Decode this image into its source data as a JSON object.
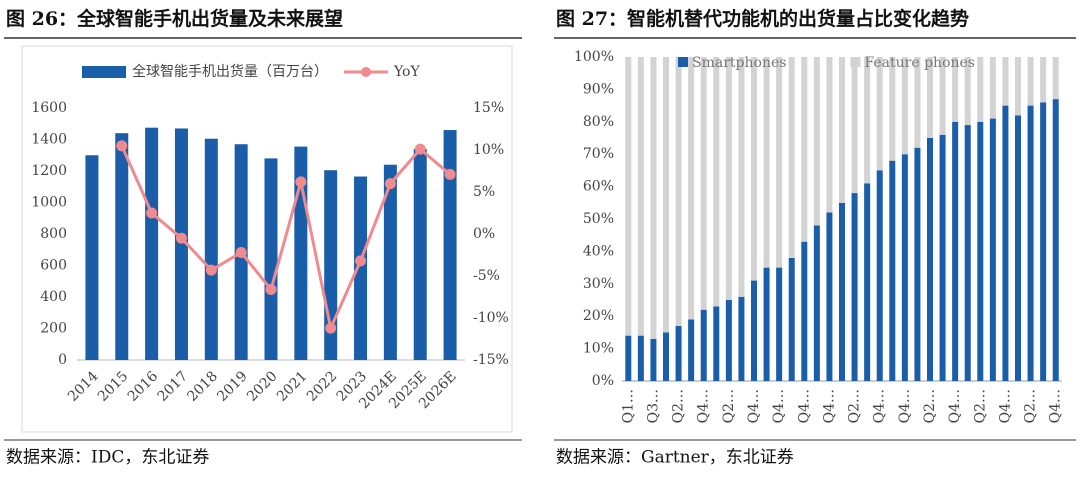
{
  "chart_data": [
    {
      "type": "combo",
      "title": "图 26：全球智能手机出货量及未来展望",
      "source": "数据来源：IDC，东北证券",
      "categories": [
        "2014",
        "2015",
        "2016",
        "2017",
        "2018",
        "2019",
        "2020",
        "2021",
        "2022",
        "2023",
        "2024E",
        "2025E",
        "2026E"
      ],
      "series": [
        {
          "name": "全球智能手机出货量（百万台）",
          "type": "bar",
          "color": "#1a5da8",
          "values": [
            1300,
            1440,
            1475,
            1470,
            1405,
            1370,
            1280,
            1355,
            1205,
            1165,
            1240,
            1340,
            1460
          ]
        },
        {
          "name": "YoY",
          "type": "line",
          "axis": "y2",
          "color": "#f08a8f",
          "values": [
            null,
            10.5,
            2.5,
            -0.5,
            -4.3,
            -2.2,
            -6.6,
            6.2,
            -11.2,
            -3.2,
            6.0,
            10.1,
            7.1
          ]
        }
      ],
      "ylim": [
        0,
        1600
      ],
      "yticks": [
        0,
        200,
        400,
        600,
        800,
        1000,
        1200,
        1400,
        1600
      ],
      "y2lim": [
        -15,
        15
      ],
      "y2ticks": [
        {
          "value": -15,
          "label": "-15%"
        },
        {
          "value": -10,
          "label": "-10%"
        },
        {
          "value": -5,
          "label": "-5%"
        },
        {
          "value": 0,
          "label": "0%"
        },
        {
          "value": 5,
          "label": "5%"
        },
        {
          "value": 10,
          "label": "10%"
        },
        {
          "value": 15,
          "label": "15%"
        }
      ]
    },
    {
      "type": "stacked_bar",
      "title": "图 27：智能机替代功能机的出货量占比变化趋势",
      "source": "数据来源：Gartner，东北证券",
      "categories": [
        "Q1…",
        null,
        "Q3…",
        null,
        "Q2…",
        null,
        "Q4…",
        null,
        "Q2…",
        null,
        "Q4…",
        null,
        "Q4…",
        null,
        "Q4…",
        null,
        "Q4…",
        null,
        "Q2…",
        null,
        "Q4…",
        null,
        "Q4…",
        null,
        "Q2…",
        null,
        "Q4…",
        null,
        "Q2…",
        null,
        "Q4…",
        null,
        "Q2…",
        null,
        "Q4…"
      ],
      "series": [
        {
          "name": "Smartphones",
          "color": "#1a5da8",
          "values": [
            14,
            14,
            13,
            15,
            17,
            19,
            22,
            23,
            25,
            26,
            31,
            35,
            35,
            38,
            43,
            48,
            52,
            55,
            58,
            61,
            65,
            68,
            70,
            72,
            75,
            76,
            80,
            79,
            80,
            81,
            85,
            82,
            85,
            86,
            87
          ]
        },
        {
          "name": "Feature phones",
          "color": "#d3d3d3",
          "values": [
            86,
            86,
            87,
            85,
            83,
            81,
            78,
            77,
            75,
            74,
            69,
            65,
            65,
            62,
            57,
            52,
            48,
            45,
            42,
            39,
            35,
            32,
            30,
            28,
            25,
            24,
            20,
            21,
            20,
            19,
            15,
            18,
            15,
            14,
            13
          ]
        }
      ],
      "ylim": [
        0,
        100
      ],
      "yticks": [
        {
          "value": 0,
          "label": "0%"
        },
        {
          "value": 10,
          "label": "10%"
        },
        {
          "value": 20,
          "label": "20%"
        },
        {
          "value": 30,
          "label": "30%"
        },
        {
          "value": 40,
          "label": "40%"
        },
        {
          "value": 50,
          "label": "50%"
        },
        {
          "value": 60,
          "label": "60%"
        },
        {
          "value": 70,
          "label": "70%"
        },
        {
          "value": 80,
          "label": "80%"
        },
        {
          "value": 90,
          "label": "90%"
        },
        {
          "value": 100,
          "label": "100%"
        }
      ],
      "legend": "top"
    }
  ]
}
